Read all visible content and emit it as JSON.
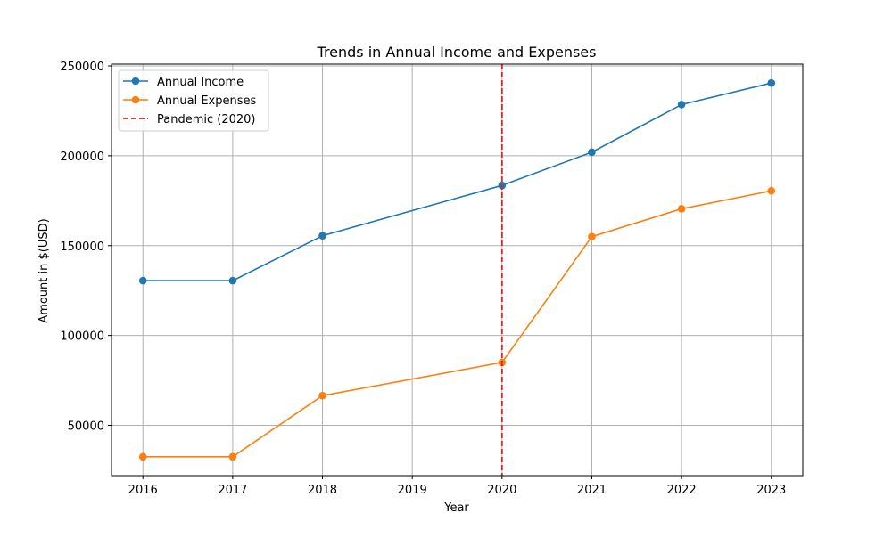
{
  "chart_data": {
    "type": "line",
    "title": "Trends in Annual Income and Expenses",
    "xlabel": "Year",
    "ylabel": "Amount in $(USD)",
    "x": [
      2016,
      2017,
      2018,
      2019,
      2020,
      2021,
      2022,
      2023
    ],
    "series": [
      {
        "name": "Annual Income",
        "color": "#1f77b4",
        "marker": "circle",
        "x": [
          2016,
          2017,
          2018,
          2020,
          2021,
          2022,
          2023
        ],
        "values": [
          130500,
          130500,
          155500,
          183500,
          202000,
          228500,
          240500
        ]
      },
      {
        "name": "Annual Expenses",
        "color": "#ff7f0e",
        "marker": "circle",
        "x": [
          2016,
          2017,
          2018,
          2020,
          2021,
          2022,
          2023
        ],
        "values": [
          32500,
          32500,
          66500,
          85000,
          155000,
          170500,
          180500
        ]
      }
    ],
    "annotations": [
      {
        "type": "vline",
        "x": 2020,
        "label": "Pandemic (2020)",
        "color": "#d62728",
        "style": "dashed"
      }
    ],
    "xticks": [
      "2016",
      "2017",
      "2018",
      "2019",
      "2020",
      "2021",
      "2022",
      "2023"
    ],
    "yticks": [
      50000,
      100000,
      150000,
      200000,
      250000
    ],
    "xlim": [
      2015.65,
      2023.35
    ],
    "ylim": [
      22000,
      251000
    ],
    "grid": true,
    "legend_position": "top-left"
  }
}
